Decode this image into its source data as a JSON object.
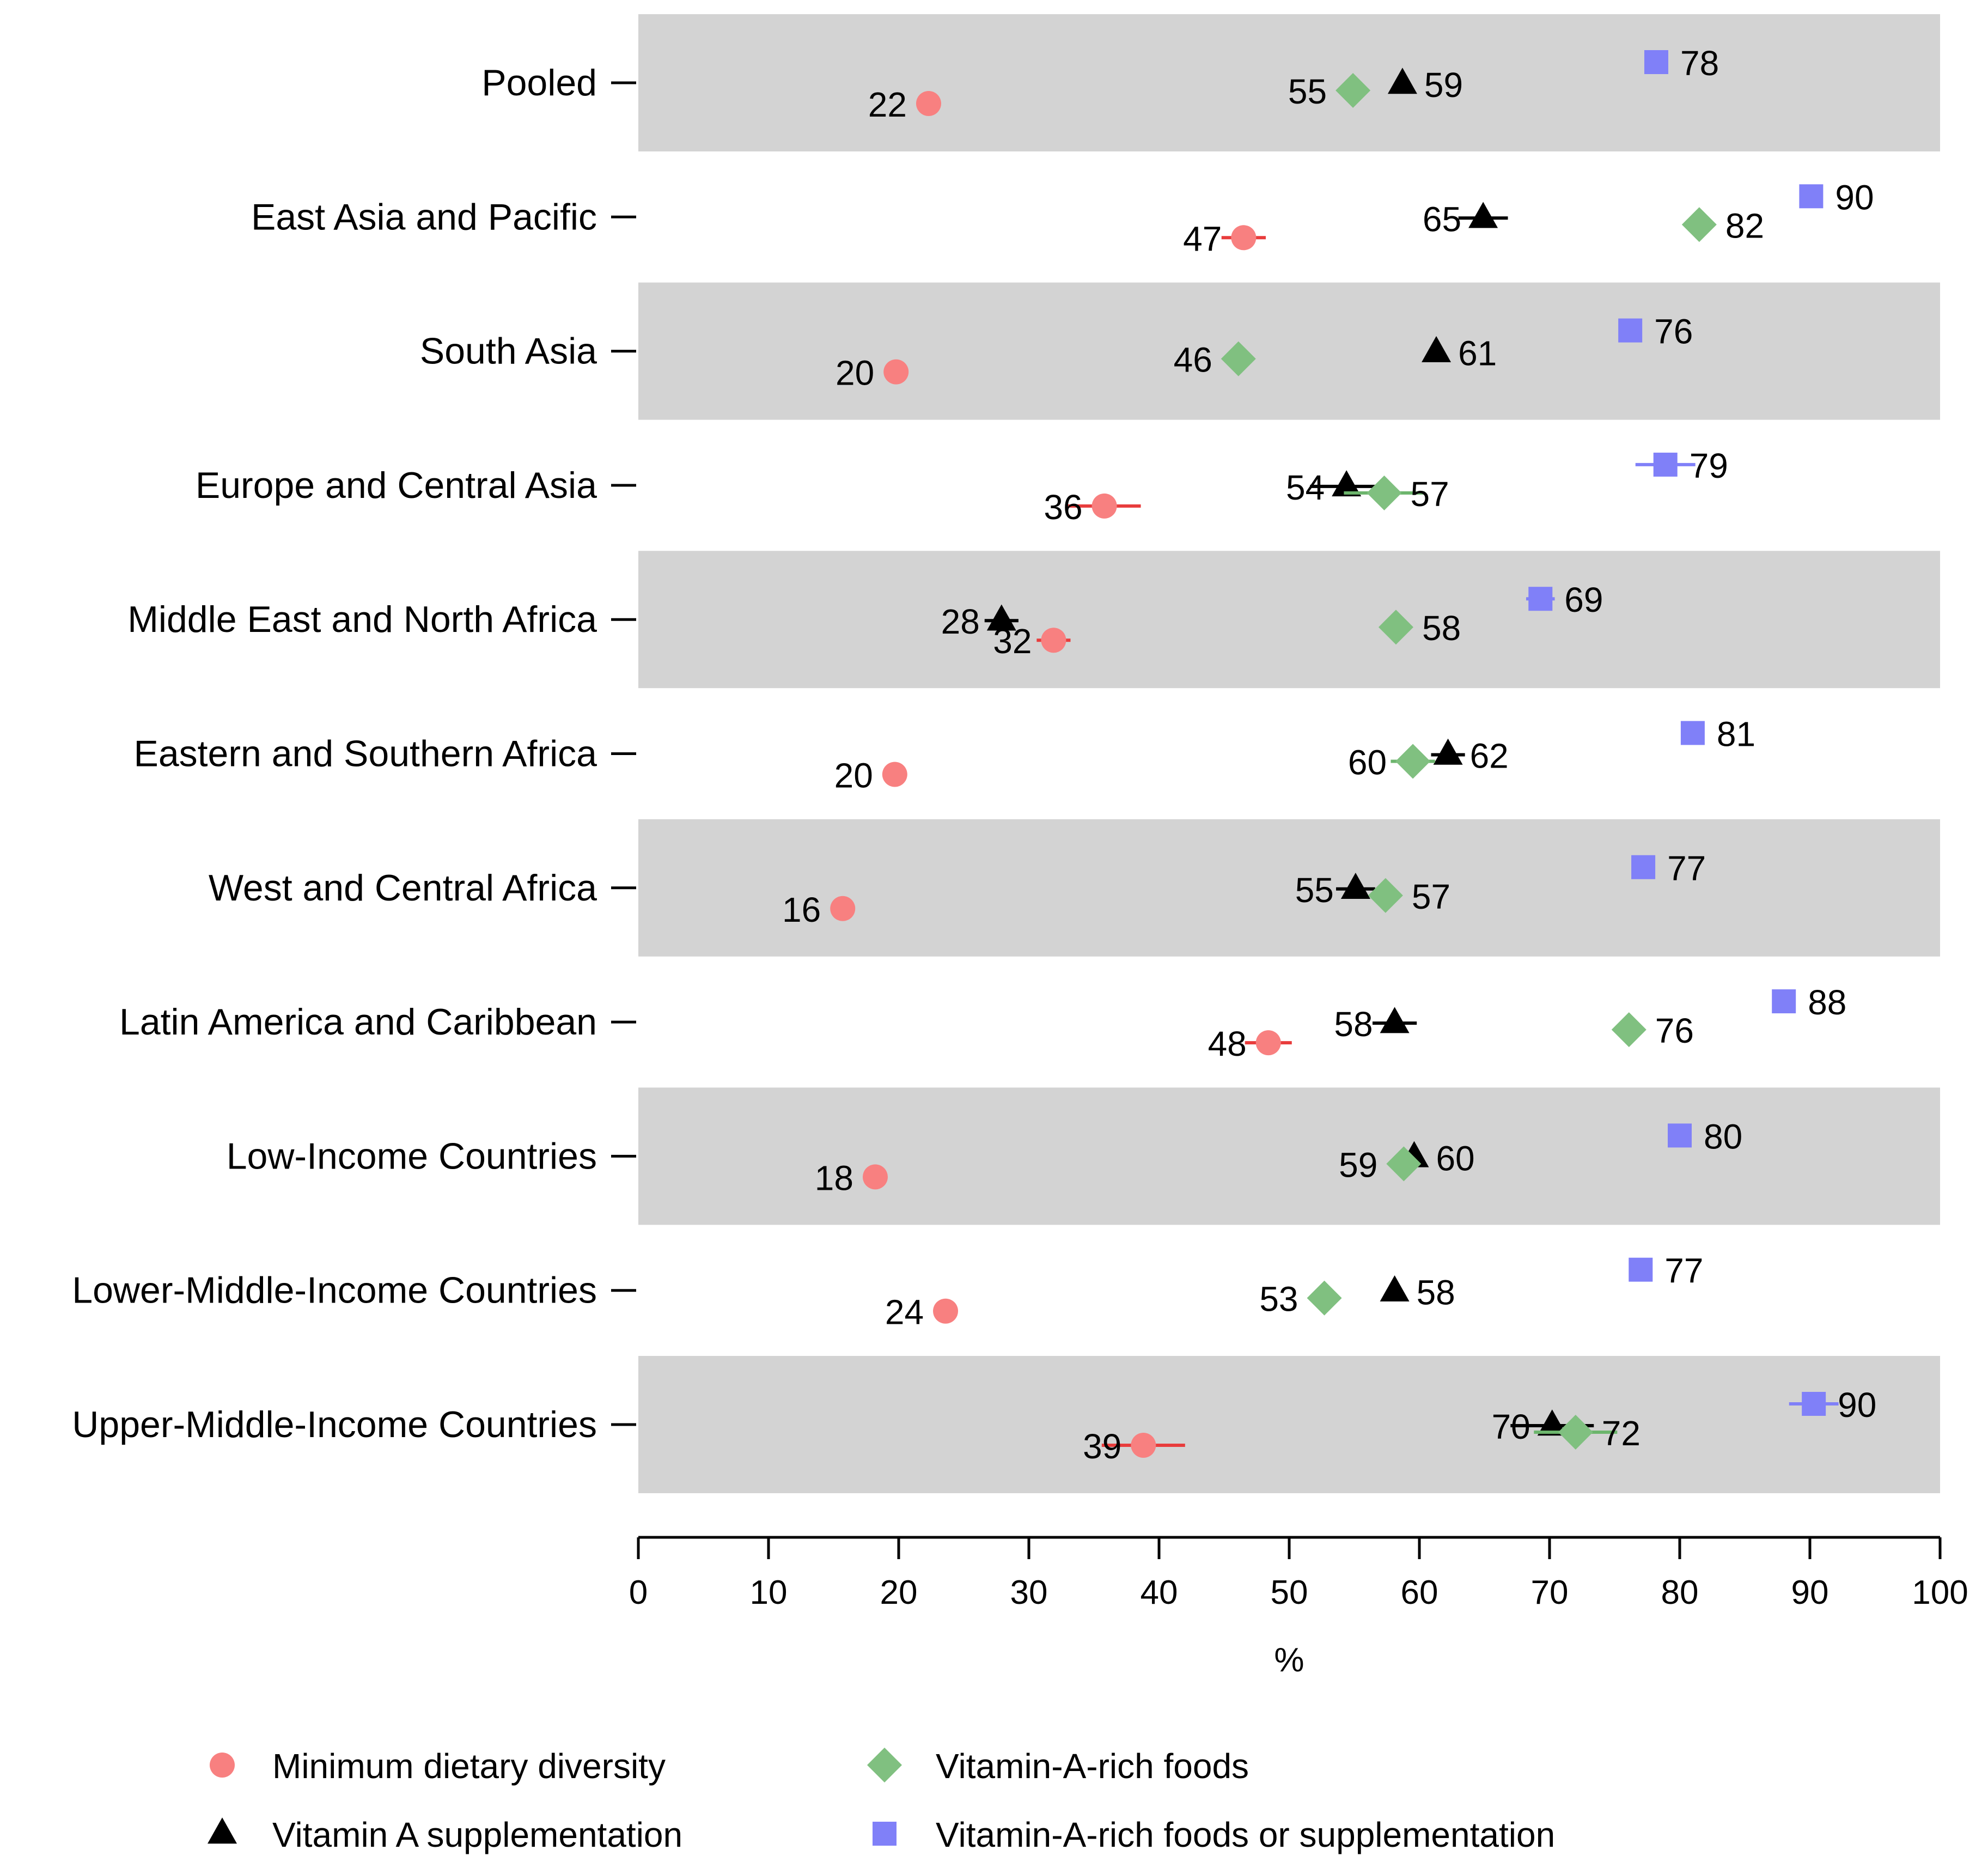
{
  "chart_data": {
    "type": "scatter",
    "orientation": "horizontal",
    "title": "",
    "xlabel": "%",
    "ylabel": "",
    "xlim": [
      0,
      100
    ],
    "xticks": [
      0,
      10,
      20,
      30,
      40,
      50,
      60,
      70,
      80,
      90,
      100
    ],
    "grid": false,
    "legend_position": "bottom",
    "categories": [
      "Pooled",
      "East Asia and Pacific",
      "South Asia",
      "Europe and Central Asia",
      "Middle East and North Africa",
      "Eastern and Southern Africa",
      "West and Central Africa",
      "Latin America and Caribbean",
      "Low-Income Countries",
      "Lower-Middle-Income Countries",
      "Upper-Middle-Income Countries"
    ],
    "series": [
      {
        "name": "Minimum dietary diversity",
        "marker": "circle",
        "color": "#f88080",
        "error_color": "#e83c3c",
        "values": [
          22.3,
          46.5,
          19.8,
          35.8,
          31.9,
          19.7,
          15.7,
          48.4,
          18.2,
          23.6,
          38.8
        ],
        "labels": [
          "22",
          "47",
          "20",
          "36",
          "32",
          "20",
          "16",
          "48",
          "18",
          "24",
          "39"
        ],
        "ci": [
          [
            22.1,
            22.5
          ],
          [
            44.8,
            48.2
          ],
          [
            19.6,
            20.0
          ],
          [
            33.0,
            38.6
          ],
          [
            30.6,
            33.2
          ],
          [
            18.9,
            20.5
          ],
          [
            15.5,
            15.9
          ],
          [
            46.6,
            50.2
          ],
          [
            18.0,
            18.4
          ],
          [
            23.4,
            23.8
          ],
          [
            35.6,
            42.0
          ]
        ]
      },
      {
        "name": "Vitamin A supplementation",
        "marker": "triangle",
        "color": "#000000",
        "error_color": "#000000",
        "values": [
          58.7,
          64.9,
          61.3,
          54.4,
          27.9,
          62.2,
          55.1,
          58.1,
          59.6,
          58.1,
          70.2
        ],
        "labels": [
          "59",
          "65",
          "61",
          "54",
          "28",
          "62",
          "55",
          "58",
          "60",
          "58",
          "70"
        ],
        "ci": [
          [
            58.5,
            58.9
          ],
          [
            63.0,
            66.8
          ],
          [
            61.1,
            61.5
          ],
          [
            51.6,
            57.2
          ],
          [
            26.6,
            29.2
          ],
          [
            60.9,
            63.5
          ],
          [
            53.6,
            56.6
          ],
          [
            56.4,
            59.8
          ],
          [
            59.2,
            60.0
          ],
          [
            57.9,
            58.3
          ],
          [
            67.0,
            73.4
          ]
        ]
      },
      {
        "name": "Vitamin-A-rich foods",
        "marker": "diamond",
        "color": "#80c080",
        "error_color": "#6cb56c",
        "values": [
          54.9,
          81.5,
          46.1,
          57.3,
          58.2,
          59.5,
          57.4,
          76.1,
          58.8,
          52.7,
          72.0
        ],
        "labels": [
          "55",
          "82",
          "46",
          "57",
          "58",
          "60",
          "57",
          "76",
          "59",
          "53",
          "72"
        ],
        "ci": [
          [
            54.7,
            55.1
          ],
          [
            80.5,
            82.5
          ],
          [
            45.9,
            46.3
          ],
          [
            54.2,
            60.4
          ],
          [
            57.0,
            59.4
          ],
          [
            57.8,
            61.2
          ],
          [
            56.6,
            58.2
          ],
          [
            75.6,
            76.6
          ],
          [
            58.4,
            59.2
          ],
          [
            52.5,
            52.9
          ],
          [
            68.8,
            75.2
          ]
        ]
      },
      {
        "name": "Vitamin-A-rich foods or supplementation",
        "marker": "square",
        "color": "#8080f8",
        "error_color": "#8080f8",
        "values": [
          78.2,
          90.1,
          76.2,
          78.9,
          69.3,
          81.0,
          77.2,
          88.0,
          80.0,
          77.0,
          90.3
        ],
        "labels": [
          "78",
          "90",
          "76",
          "79",
          "69",
          "81",
          "77",
          "88",
          "80",
          "77",
          "90"
        ],
        "ci": [
          [
            78.0,
            78.4
          ],
          [
            89.5,
            90.7
          ],
          [
            76.0,
            76.4
          ],
          [
            76.6,
            81.2
          ],
          [
            68.2,
            70.4
          ],
          [
            80.2,
            81.8
          ],
          [
            76.4,
            78.0
          ],
          [
            87.6,
            88.4
          ],
          [
            79.8,
            80.2
          ],
          [
            76.8,
            77.2
          ],
          [
            88.4,
            92.2
          ]
        ]
      }
    ]
  }
}
